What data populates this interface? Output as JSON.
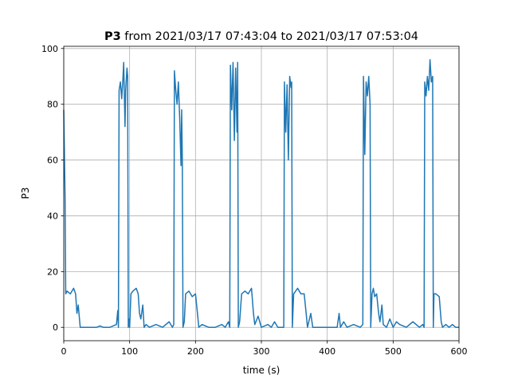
{
  "chart_data": {
    "type": "line",
    "title_parts": [
      "P3",
      "from 2021/03/17 07:43:04 to 2021/03/17 07:53:04"
    ],
    "xlabel": "time (s)",
    "ylabel": "P3",
    "xlim": [
      0,
      600
    ],
    "ylim": [
      -4.8,
      100.8
    ],
    "xticks": [
      0,
      100,
      200,
      300,
      400,
      500,
      600
    ],
    "yticks": [
      0,
      20,
      40,
      60,
      80,
      100
    ],
    "grid": true,
    "series": [
      {
        "name": "P3",
        "color": "#1f77b4",
        "x": [
          0,
          1,
          2,
          3,
          5,
          10,
          15,
          18,
          20,
          22,
          25,
          30,
          40,
          50,
          55,
          60,
          70,
          80,
          82,
          83,
          84,
          86,
          88,
          90,
          91,
          93,
          94,
          96,
          97,
          98,
          99,
          100,
          102,
          105,
          110,
          113,
          115,
          117,
          120,
          122,
          125,
          130,
          140,
          150,
          160,
          165,
          167,
          168,
          170,
          172,
          174,
          176,
          178,
          179,
          180,
          181,
          183,
          185,
          190,
          195,
          200,
          203,
          205,
          210,
          220,
          230,
          240,
          245,
          250,
          252,
          253,
          255,
          257,
          259,
          261,
          263,
          264,
          265,
          267,
          270,
          275,
          280,
          285,
          288,
          290,
          295,
          300,
          310,
          315,
          320,
          325,
          330,
          334,
          335,
          337,
          339,
          341,
          343,
          345,
          346,
          347,
          349,
          352,
          355,
          360,
          365,
          368,
          370,
          375,
          378,
          380,
          390,
          400,
          410,
          415,
          418,
          420,
          425,
          430,
          440,
          450,
          454,
          455,
          457,
          459,
          461,
          463,
          465,
          466,
          468,
          470,
          472,
          475,
          478,
          480,
          483,
          485,
          490,
          495,
          500,
          505,
          510,
          520,
          530,
          540,
          545,
          547,
          548,
          550,
          552,
          554,
          556,
          558,
          560,
          561,
          562,
          565,
          570,
          573,
          575,
          580,
          585,
          590,
          595,
          600
        ],
        "values": [
          78,
          62,
          47,
          12,
          13,
          12,
          14,
          12,
          5,
          8,
          0,
          0,
          0,
          0,
          0.5,
          0,
          0,
          1,
          6,
          0,
          85,
          88,
          82,
          90,
          95,
          72,
          85,
          93,
          90,
          0,
          3,
          0,
          12,
          13,
          14,
          12,
          5,
          3,
          8,
          0,
          1,
          0,
          1,
          0,
          2,
          0,
          1,
          92,
          85,
          80,
          88,
          75,
          58,
          78,
          60,
          0,
          2,
          12,
          13,
          11,
          12,
          5,
          0,
          1,
          0,
          0,
          1,
          0,
          2,
          0,
          94,
          78,
          95,
          67,
          93,
          70,
          95,
          0,
          2,
          12,
          13,
          12,
          14,
          5,
          1,
          4,
          0,
          1,
          0,
          2,
          0,
          0,
          0,
          88,
          70,
          87,
          60,
          90,
          86,
          88,
          0,
          12,
          13,
          14,
          12,
          12,
          5,
          0,
          5,
          0,
          0,
          0,
          0,
          0,
          0,
          5,
          0,
          2,
          0,
          1,
          0,
          1,
          90,
          62,
          88,
          83,
          90,
          80,
          0,
          12,
          14,
          11,
          12,
          5,
          2,
          8,
          1,
          0,
          3,
          0,
          2,
          1,
          0,
          2,
          0,
          1,
          0,
          88,
          83,
          90,
          85,
          96,
          88,
          90,
          0,
          12,
          12,
          11,
          2,
          0,
          1,
          0,
          1,
          0,
          0
        ]
      }
    ]
  }
}
